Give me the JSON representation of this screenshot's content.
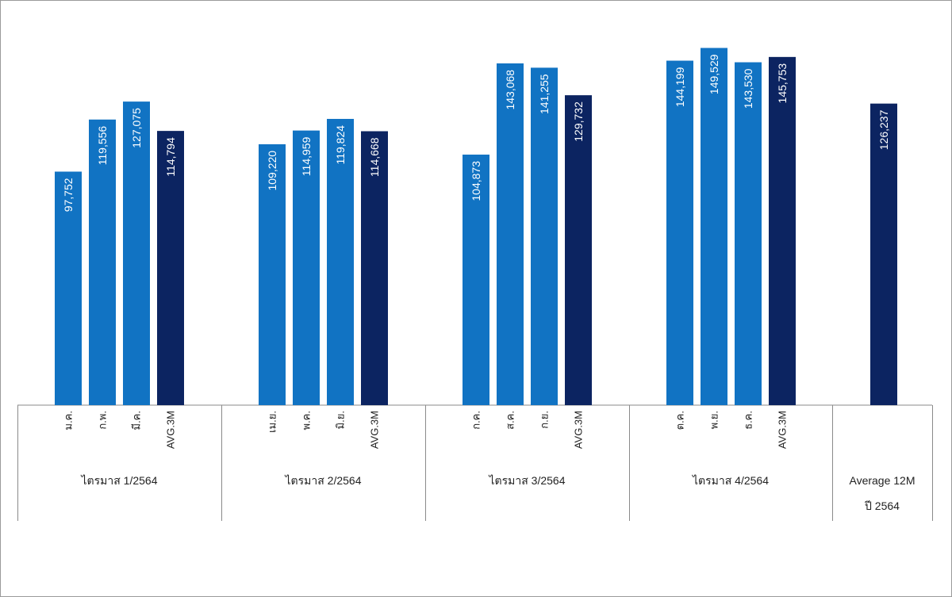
{
  "chart_data": {
    "type": "bar",
    "title": "",
    "xlabel": "",
    "ylabel": "",
    "grid": false,
    "legend": "none",
    "colors": {
      "month": "#1173c3",
      "average": "#0c2461"
    },
    "groups": [
      {
        "label": "ไตรมาส 1/2564",
        "bars": [
          {
            "category": "ม.ค.",
            "value": 97752,
            "value_label": "97,752",
            "kind": "month"
          },
          {
            "category": "ก.พ.",
            "value": 119556,
            "value_label": "119,556",
            "kind": "month"
          },
          {
            "category": "มี.ค.",
            "value": 127075,
            "value_label": "127,075",
            "kind": "month"
          },
          {
            "category": "AVG.3M",
            "value": 114794,
            "value_label": "114,794",
            "kind": "average"
          }
        ]
      },
      {
        "label": "ไตรมาส 2/2564",
        "bars": [
          {
            "category": "เม.ย.",
            "value": 109220,
            "value_label": "109,220",
            "kind": "month"
          },
          {
            "category": "พ.ค.",
            "value": 114959,
            "value_label": "114,959",
            "kind": "month"
          },
          {
            "category": "มิ.ย.",
            "value": 119824,
            "value_label": "119,824",
            "kind": "month"
          },
          {
            "category": "AVG.3M",
            "value": 114668,
            "value_label": "114,668",
            "kind": "average"
          }
        ]
      },
      {
        "label": "ไตรมาส 3/2564",
        "bars": [
          {
            "category": "ก.ค.",
            "value": 104873,
            "value_label": "104,873",
            "kind": "month"
          },
          {
            "category": "ส.ค.",
            "value": 143068,
            "value_label": "143,068",
            "kind": "month"
          },
          {
            "category": "ก.ย.",
            "value": 141255,
            "value_label": "141,255",
            "kind": "month"
          },
          {
            "category": "AVG.3M",
            "value": 129732,
            "value_label": "129,732",
            "kind": "average"
          }
        ]
      },
      {
        "label": "ไตรมาส 4/2564",
        "bars": [
          {
            "category": "ต.ค.",
            "value": 144199,
            "value_label": "144,199",
            "kind": "month"
          },
          {
            "category": "พ.ย.",
            "value": 149529,
            "value_label": "149,529",
            "kind": "month"
          },
          {
            "category": "ธ.ค.",
            "value": 143530,
            "value_label": "143,530",
            "kind": "month"
          },
          {
            "category": "AVG.3M",
            "value": 145753,
            "value_label": "145,753",
            "kind": "average"
          }
        ]
      },
      {
        "label": [
          "Average 12M",
          "ปี 2564"
        ],
        "bars": [
          {
            "category": "",
            "value": 126237,
            "value_label": "126,237",
            "kind": "average"
          }
        ]
      }
    ]
  }
}
